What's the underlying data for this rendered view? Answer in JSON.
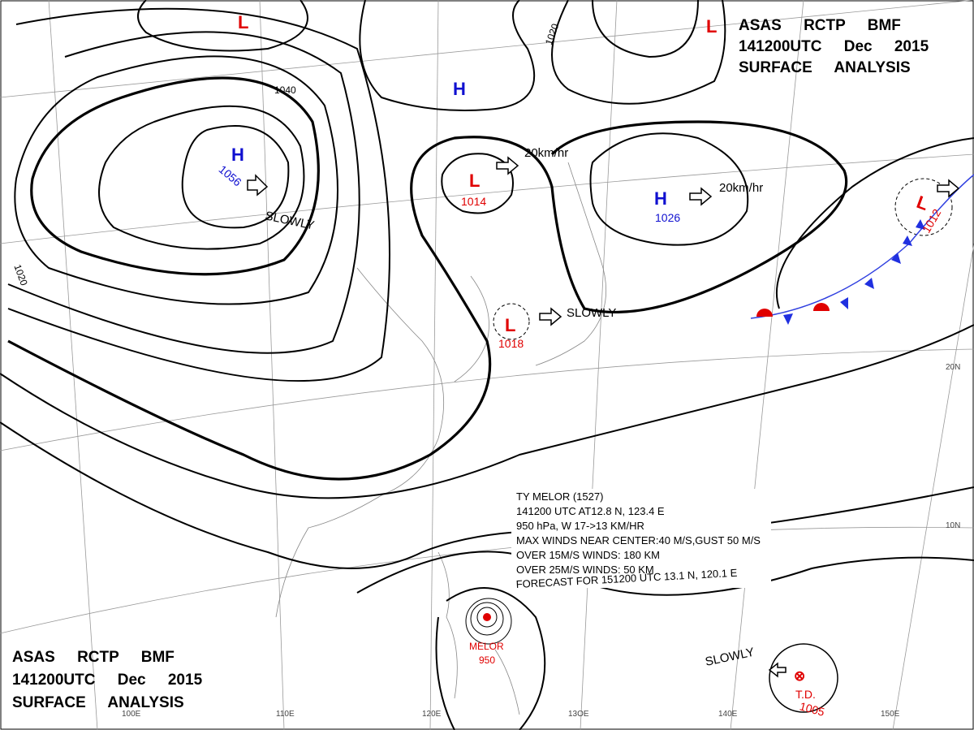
{
  "header": {
    "line1": "ASAS RCTP BMF",
    "line2": "141200UTC Dec 2015",
    "line3": "SURFACE ANALYSIS"
  },
  "systems": [
    {
      "symbol": "H",
      "pressure": "1056"
    },
    {
      "symbol": "H",
      "pressure": "1026"
    },
    {
      "symbol": "H"
    },
    {
      "symbol": "L",
      "pressure": "1014"
    },
    {
      "symbol": "L",
      "pressure": "1018"
    },
    {
      "symbol": "L",
      "pressure": "1012"
    },
    {
      "symbol": "L"
    },
    {
      "symbol": "L"
    },
    {
      "symbol": "T.D.",
      "pressure": "1005"
    },
    {
      "symbol": "MELOR",
      "pressure": "950"
    }
  ],
  "isobar_labels": [
    "1040",
    "1020",
    "1020"
  ],
  "motions": [
    "20km/hr",
    "20km/hr",
    "SLOWLY",
    "SLOWLY",
    "SLOWLY"
  ],
  "typhoon": {
    "lines": [
      "TY MELOR (1527)",
      "141200 UTC AT12.8 N, 123.4 E",
      "950 hPa, W 17->13 KM/HR",
      "MAX WINDS NEAR CENTER:40 M/S,GUST 50 M/S",
      "OVER 15M/S WINDS: 180 KM",
      "OVER 25M/S WINDS: 50 KM",
      "FORECAST FOR 151200 UTC 13.1 N, 120.1 E"
    ]
  },
  "grid_labels": [
    "20N",
    "10N",
    "100E",
    "110E",
    "120E",
    "13OE",
    "140E",
    "150E"
  ]
}
